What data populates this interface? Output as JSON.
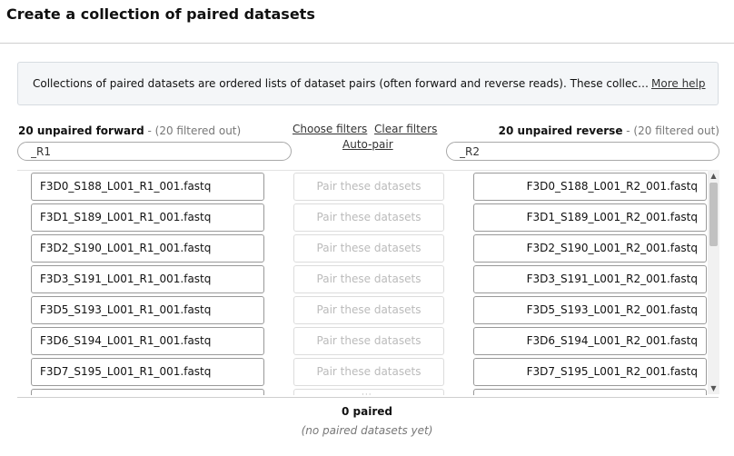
{
  "header": {
    "title": "Create a collection of paired datasets"
  },
  "help": {
    "text": "Collections of paired datasets are ordered lists of dataset pairs (often forward and reverse reads). These collections can be passed to tools and workflows in order to have analyses done on each member of the entire group. This interface allows you to create a collection, choose which datasets are paired, and re-order the final collection.",
    "more_link": "More help"
  },
  "forward": {
    "count_label": "20 unpaired forward",
    "filtered_label": " - (20 filtered out)",
    "filter_value": "_R1"
  },
  "reverse": {
    "count_label": "20 unpaired reverse",
    "filtered_label": " - (20 filtered out)",
    "filter_value": "_R2"
  },
  "filter_links": {
    "choose": "Choose filters",
    "clear": "Clear filters",
    "auto_pair": "Auto-pair"
  },
  "pair_label": "Pair these datasets",
  "rows": [
    {
      "forward": "F3D0_S188_L001_R1_001.fastq",
      "reverse": "F3D0_S188_L001_R2_001.fastq"
    },
    {
      "forward": "F3D1_S189_L001_R1_001.fastq",
      "reverse": "F3D1_S189_L001_R2_001.fastq"
    },
    {
      "forward": "F3D2_S190_L001_R1_001.fastq",
      "reverse": "F3D2_S190_L001_R2_001.fastq"
    },
    {
      "forward": "F3D3_S191_L001_R1_001.fastq",
      "reverse": "F3D3_S191_L001_R2_001.fastq"
    },
    {
      "forward": "F3D5_S193_L001_R1_001.fastq",
      "reverse": "F3D5_S193_L001_R2_001.fastq"
    },
    {
      "forward": "F3D6_S194_L001_R1_001.fastq",
      "reverse": "F3D6_S194_L001_R2_001.fastq"
    },
    {
      "forward": "F3D7_S195_L001_R1_001.fastq",
      "reverse": "F3D7_S195_L001_R2_001.fastq"
    },
    {
      "forward": "",
      "reverse": ""
    }
  ],
  "paired": {
    "count_label": "0 paired",
    "empty_label": "(no paired datasets yet)"
  },
  "icons": {
    "scroll_up": "triangle-up",
    "scroll_down": "triangle-down",
    "drag": "dots-handle"
  }
}
